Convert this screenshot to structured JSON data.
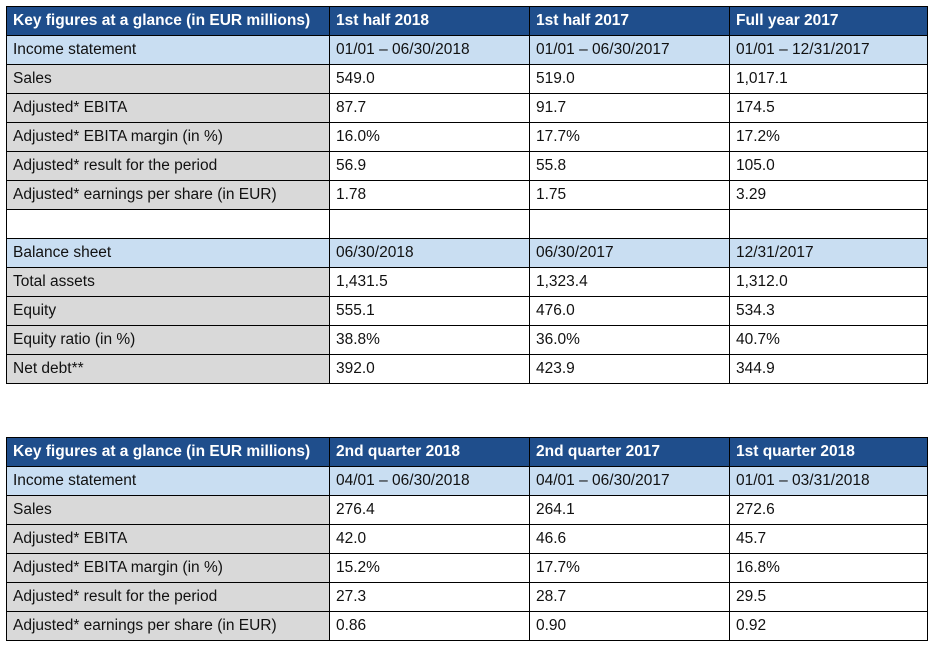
{
  "table1": {
    "header": [
      "Key figures at a glance (in EUR millions)",
      "1st half 2018",
      "1st half 2017",
      "Full year 2017"
    ],
    "income_section": [
      "Income statement",
      "01/01 – 06/30/2018",
      "01/01 – 06/30/2017",
      "01/01 – 12/31/2017"
    ],
    "income_rows": [
      [
        "Sales",
        "549.0",
        "519.0",
        "1,017.1"
      ],
      [
        "Adjusted* EBITA",
        "87.7",
        "91.7",
        "174.5"
      ],
      [
        "Adjusted* EBITA margin (in %)",
        "16.0%",
        "17.7%",
        "17.2%"
      ],
      [
        "Adjusted* result for the period",
        "56.9",
        "55.8",
        "105.0"
      ],
      [
        "Adjusted* earnings per share (in EUR)",
        "1.78",
        "1.75",
        "3.29"
      ]
    ],
    "balance_section": [
      "Balance sheet",
      "06/30/2018",
      "06/30/2017",
      "12/31/2017"
    ],
    "balance_rows": [
      [
        "Total assets",
        "1,431.5",
        "1,323.4",
        "1,312.0"
      ],
      [
        "Equity",
        "555.1",
        "476.0",
        "534.3"
      ],
      [
        "Equity ratio (in %)",
        "38.8%",
        "36.0%",
        "40.7%"
      ],
      [
        "Net debt**",
        "392.0",
        "423.9",
        "344.9"
      ]
    ]
  },
  "table2": {
    "header": [
      "Key figures at a glance (in EUR millions)",
      "2nd quarter 2018",
      "2nd quarter 2017",
      "1st quarter 2018"
    ],
    "income_section": [
      "Income statement",
      "04/01 – 06/30/2018",
      "04/01 – 06/30/2017",
      "01/01 – 03/31/2018"
    ],
    "income_rows": [
      [
        "Sales",
        "276.4",
        "264.1",
        "272.6"
      ],
      [
        "Adjusted* EBITA",
        "42.0",
        "46.6",
        "45.7"
      ],
      [
        "Adjusted* EBITA margin (in %)",
        "15.2%",
        "17.7%",
        "16.8%"
      ],
      [
        "Adjusted* result for the period",
        "27.3",
        "28.7",
        "29.5"
      ],
      [
        "Adjusted* earnings per share (in EUR)",
        "0.86",
        "0.90",
        "0.92"
      ]
    ]
  }
}
